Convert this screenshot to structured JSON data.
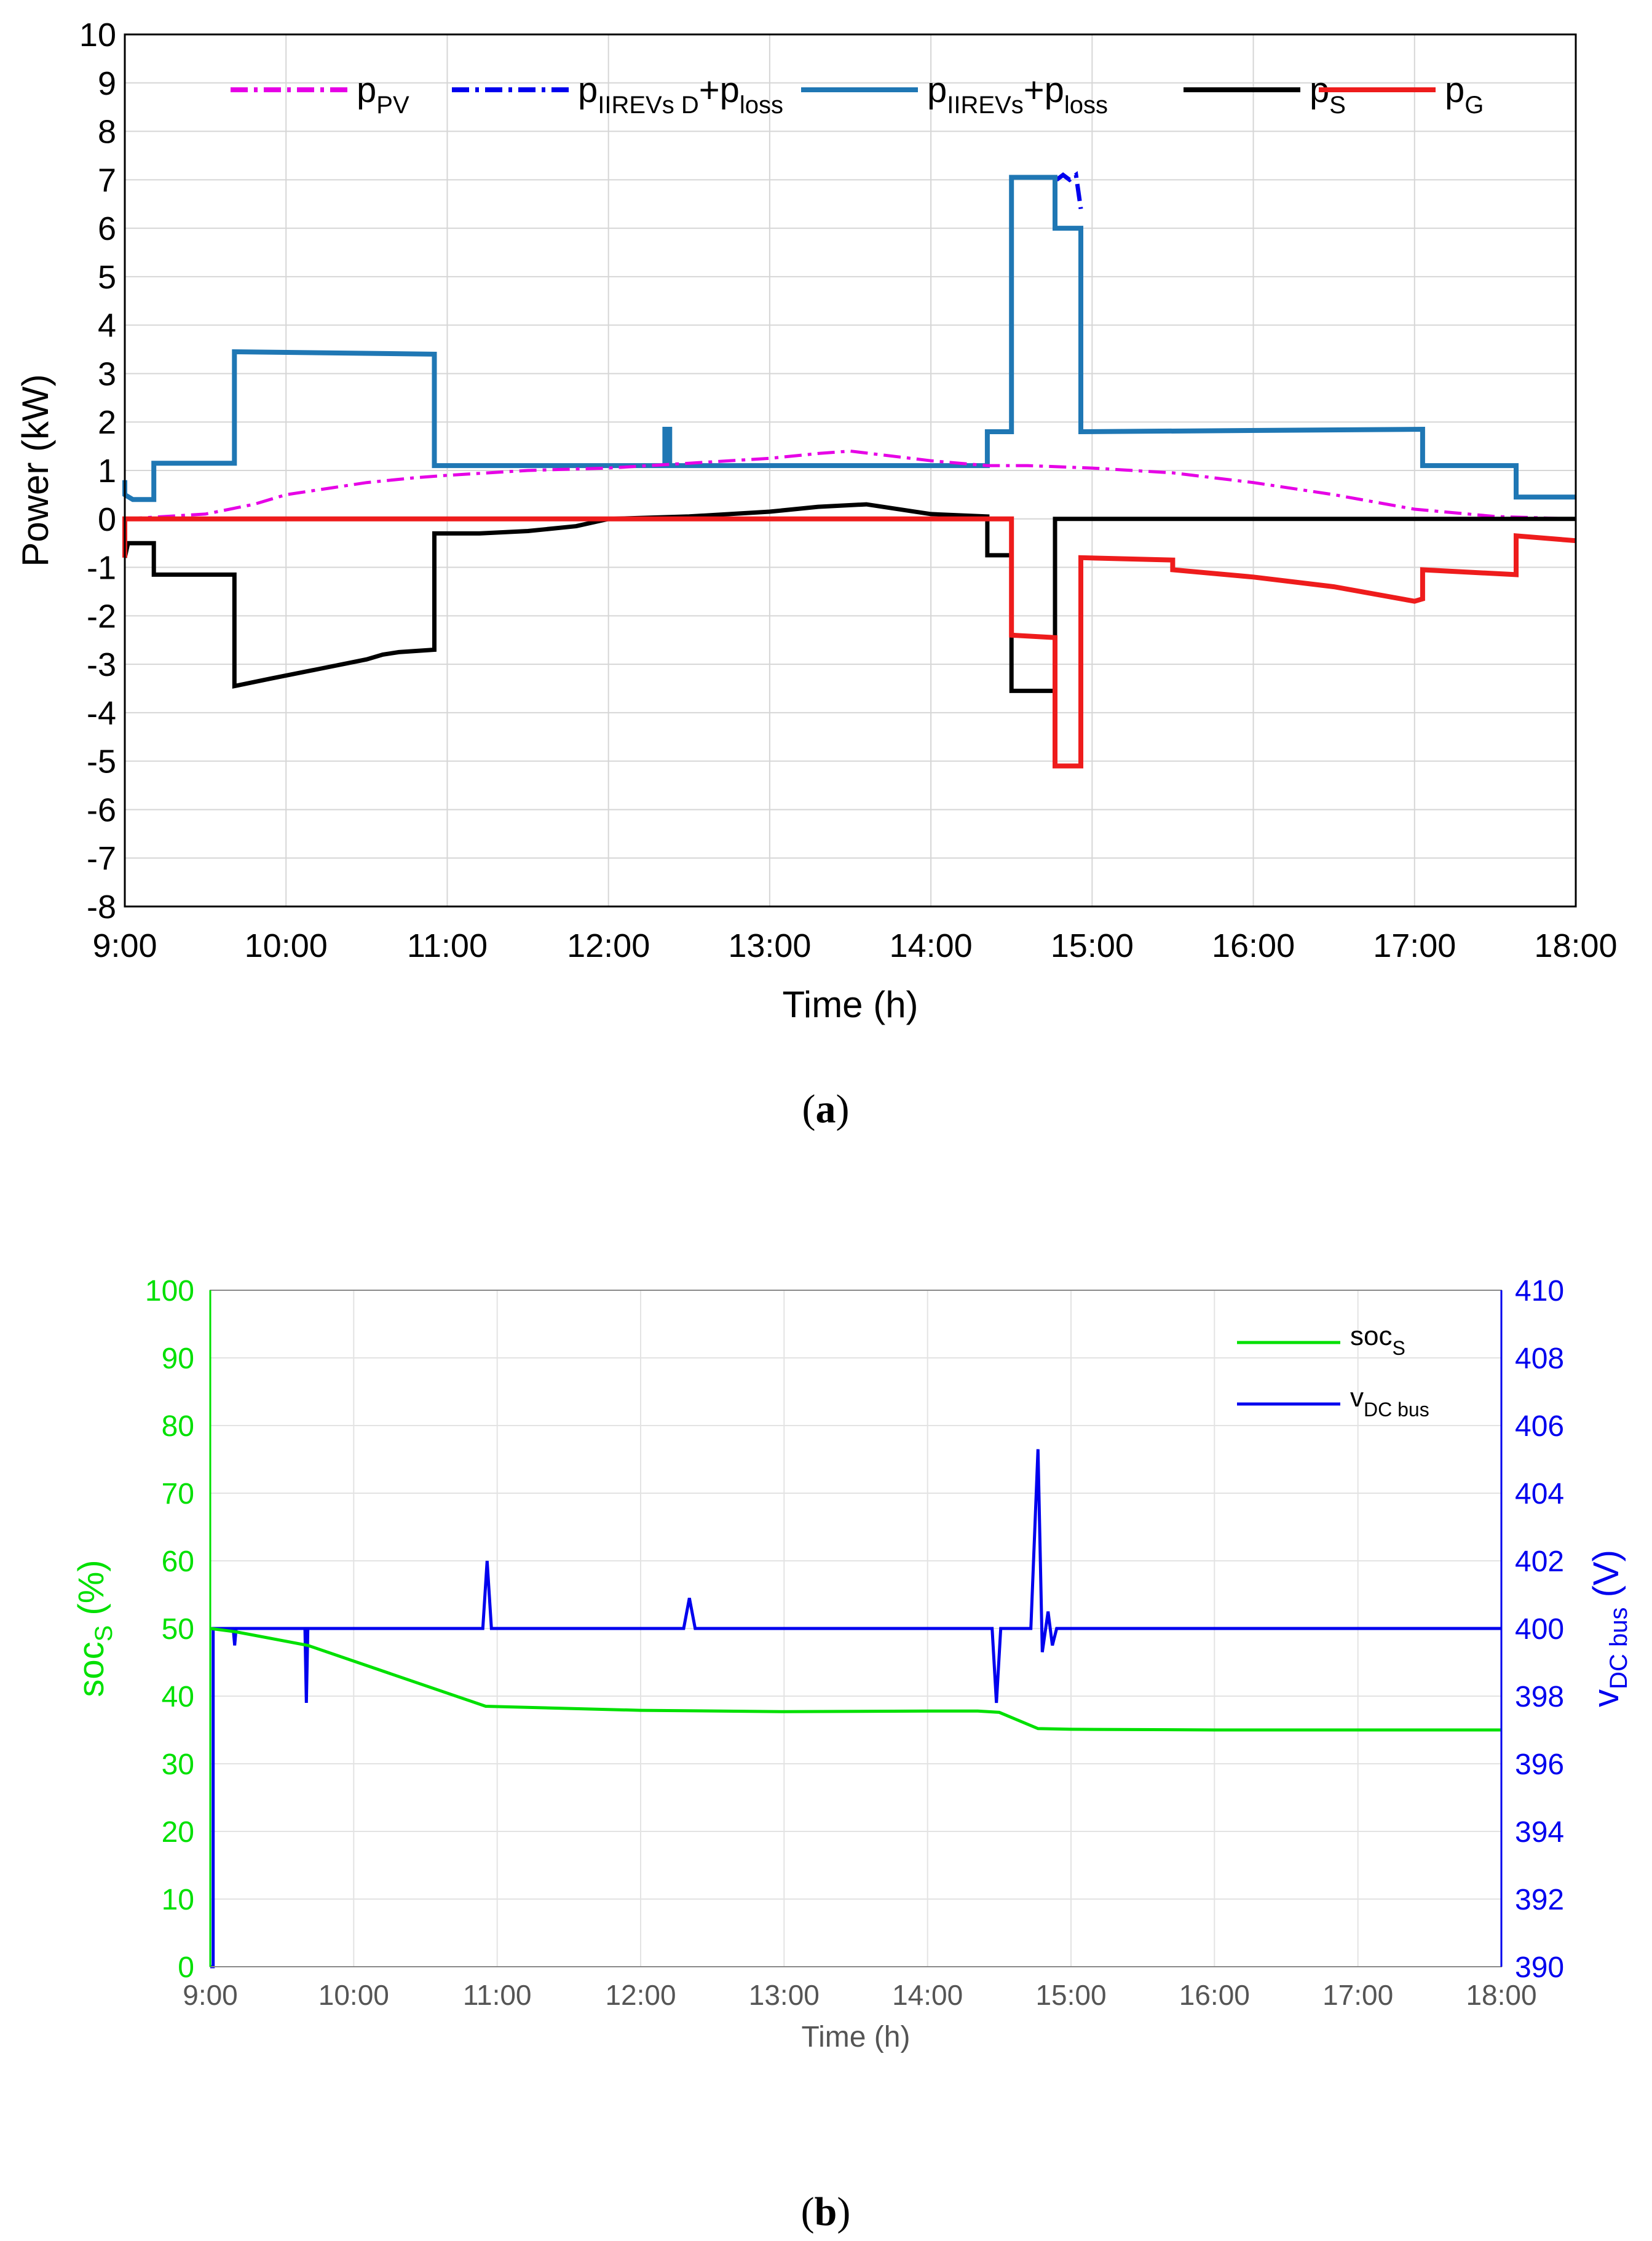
{
  "figure": {
    "panel_a_caption": "(a)",
    "panel_b_caption": "(b)",
    "caption_letters": [
      "a",
      "b"
    ]
  },
  "chart_data": [
    {
      "id": "a",
      "type": "line",
      "title": "",
      "xlabel": "Time (h)",
      "ylabel": "Power (kW)",
      "xlim": [
        9,
        18
      ],
      "ylim": [
        -8,
        10
      ],
      "grid": true,
      "legend_position": "top",
      "x_ticks": [
        "9:00",
        "10:00",
        "11:00",
        "12:00",
        "13:00",
        "14:00",
        "15:00",
        "16:00",
        "17:00",
        "18:00"
      ],
      "y_ticks": [
        "10",
        "9",
        "8",
        "7",
        "6",
        "5",
        "4",
        "3",
        "2",
        "1",
        "0",
        "-1",
        "-2",
        "-3",
        "-4",
        "-5",
        "-6",
        "-7",
        "-8"
      ],
      "legend": [
        {
          "id": "pv",
          "main": "p",
          "sub": "PV",
          "plus": "",
          "sub2": ""
        },
        {
          "id": "evd",
          "main": "p",
          "sub": "IIREVs D",
          "plus": "+p",
          "sub2": "loss"
        },
        {
          "id": "ev",
          "main": "p",
          "sub": "IIREVs",
          "plus": "+p",
          "sub2": "loss"
        },
        {
          "id": "s",
          "main": "p",
          "sub": "S",
          "plus": "",
          "sub2": ""
        },
        {
          "id": "g",
          "main": "p",
          "sub": "G",
          "plus": "",
          "sub2": ""
        }
      ],
      "series": [
        {
          "id": "evd",
          "color": "#0000ee",
          "dash": "28,10,6,10",
          "width": 7,
          "x": [
            14.78,
            14.82,
            14.86,
            14.9,
            14.93
          ],
          "y": [
            7.0,
            7.1,
            7.0,
            7.1,
            6.4
          ]
        },
        {
          "id": "ev",
          "color": "#1f77b4",
          "dash": "",
          "width": 8,
          "x": [
            9.0,
            9.0,
            9.05,
            9.18,
            9.18,
            9.68,
            9.68,
            10.92,
            10.92,
            12.35,
            12.35,
            12.38,
            12.38,
            14.35,
            14.35,
            14.5,
            14.5,
            14.77,
            14.77,
            14.93,
            14.93,
            17.05,
            17.05,
            17.63,
            17.63,
            18.0
          ],
          "y": [
            0.8,
            0.5,
            0.4,
            0.4,
            1.15,
            1.15,
            3.45,
            3.4,
            1.1,
            1.1,
            1.85,
            1.85,
            1.1,
            1.1,
            1.8,
            1.8,
            7.05,
            7.05,
            6.0,
            6.0,
            1.8,
            1.85,
            1.1,
            1.1,
            0.45,
            0.45
          ]
        },
        {
          "id": "pv",
          "color": "#e600e6",
          "dash": "28,10,6,10",
          "width": 5,
          "x": [
            9.0,
            9.5,
            9.8,
            10.0,
            10.3,
            10.5,
            10.8,
            11.0,
            11.5,
            12.0,
            12.5,
            13.0,
            13.3,
            13.5,
            14.0,
            14.35,
            14.6,
            15.0,
            15.5,
            16.0,
            16.5,
            17.0,
            17.5,
            18.0
          ],
          "y": [
            0.0,
            0.1,
            0.3,
            0.5,
            0.65,
            0.75,
            0.85,
            0.9,
            1.0,
            1.05,
            1.15,
            1.25,
            1.35,
            1.4,
            1.2,
            1.1,
            1.1,
            1.05,
            0.95,
            0.75,
            0.5,
            0.2,
            0.05,
            0.0
          ]
        },
        {
          "id": "s",
          "color": "#000000",
          "dash": "",
          "width": 7,
          "x": [
            9.0,
            9.02,
            9.08,
            9.18,
            9.18,
            9.68,
            9.68,
            9.9,
            10.2,
            10.5,
            10.6,
            10.7,
            10.92,
            10.92,
            11.2,
            11.5,
            11.8,
            12.0,
            12.5,
            13.0,
            13.3,
            13.6,
            14.0,
            14.35,
            14.35,
            14.5,
            14.5,
            14.77,
            14.77,
            18.0
          ],
          "y": [
            -0.8,
            -0.5,
            -0.5,
            -0.5,
            -1.15,
            -1.15,
            -3.45,
            -3.3,
            -3.1,
            -2.9,
            -2.8,
            -2.75,
            -2.7,
            -0.3,
            -0.3,
            -0.25,
            -0.15,
            0.0,
            0.05,
            0.15,
            0.25,
            0.3,
            0.1,
            0.05,
            -0.75,
            -0.75,
            -3.55,
            -3.55,
            0.0,
            0.0
          ]
        },
        {
          "id": "g",
          "color": "#ee1c1c",
          "dash": "",
          "width": 8,
          "x": [
            9.0,
            9.0,
            14.5,
            14.5,
            14.77,
            14.77,
            14.93,
            14.93,
            15.5,
            15.5,
            16.0,
            16.5,
            17.0,
            17.05,
            17.05,
            17.63,
            17.63,
            18.0
          ],
          "y": [
            -0.8,
            0.0,
            0.0,
            -2.4,
            -2.45,
            -5.1,
            -5.1,
            -0.8,
            -0.85,
            -1.05,
            -1.2,
            -1.4,
            -1.7,
            -1.65,
            -1.05,
            -1.15,
            -0.35,
            -0.45
          ]
        }
      ]
    },
    {
      "id": "b",
      "type": "line",
      "title": "",
      "xlabel": "Time (h)",
      "ylabel_left": "socS (%)",
      "ylabel_left_main": "soc",
      "ylabel_left_sub": "S",
      "ylabel_left_rest": " (%)",
      "ylabel_right": "vDC bus (V)",
      "ylabel_right_main": "v",
      "ylabel_right_sub": "DC bus",
      "ylabel_right_rest": " (V)",
      "xlim": [
        9,
        18
      ],
      "ylim_left": [
        0,
        100
      ],
      "ylim_right": [
        390,
        410
      ],
      "grid": true,
      "legend_position": "top-right",
      "x_ticks": [
        "9:00",
        "10:00",
        "11:00",
        "12:00",
        "13:00",
        "14:00",
        "15:00",
        "16:00",
        "17:00",
        "18:00"
      ],
      "y_ticks_left": [
        "100",
        "90",
        "80",
        "70",
        "60",
        "50",
        "40",
        "30",
        "20",
        "10",
        "0"
      ],
      "y_ticks_right": [
        "410",
        "408",
        "406",
        "404",
        "402",
        "400",
        "398",
        "396",
        "394",
        "392",
        "390"
      ],
      "legend": [
        {
          "id": "soc",
          "main": "soc",
          "sub": "S"
        },
        {
          "id": "vdc",
          "main": "v",
          "sub": "DC bus"
        }
      ],
      "series": [
        {
          "id": "vdc",
          "axis": "right",
          "color": "#0000ee",
          "width": 5,
          "x": [
            9.0,
            9.02,
            9.02,
            9.16,
            9.17,
            9.18,
            9.66,
            9.67,
            9.68,
            10.9,
            10.93,
            10.96,
            12.3,
            12.34,
            12.38,
            14.45,
            14.48,
            14.51,
            14.72,
            14.77,
            14.8,
            14.84,
            14.87,
            14.9,
            18.0
          ],
          "y": [
            390.0,
            390.0,
            400.0,
            400.0,
            399.5,
            400.0,
            400.0,
            397.8,
            400.0,
            400.0,
            402.0,
            400.0,
            400.0,
            400.9,
            400.0,
            400.0,
            397.8,
            400.0,
            400.0,
            405.3,
            399.3,
            400.5,
            399.5,
            400.0,
            400.0
          ]
        },
        {
          "id": "soc",
          "axis": "left",
          "color": "#00e000",
          "width": 5,
          "x": [
            9.0,
            9.18,
            9.68,
            10.92,
            12.0,
            13.0,
            14.0,
            14.35,
            14.5,
            14.77,
            15.0,
            16.0,
            17.0,
            18.0
          ],
          "y": [
            50.0,
            49.5,
            47.5,
            38.5,
            37.9,
            37.7,
            37.8,
            37.8,
            37.6,
            35.2,
            35.1,
            35.0,
            35.0,
            35.0
          ]
        }
      ]
    }
  ]
}
